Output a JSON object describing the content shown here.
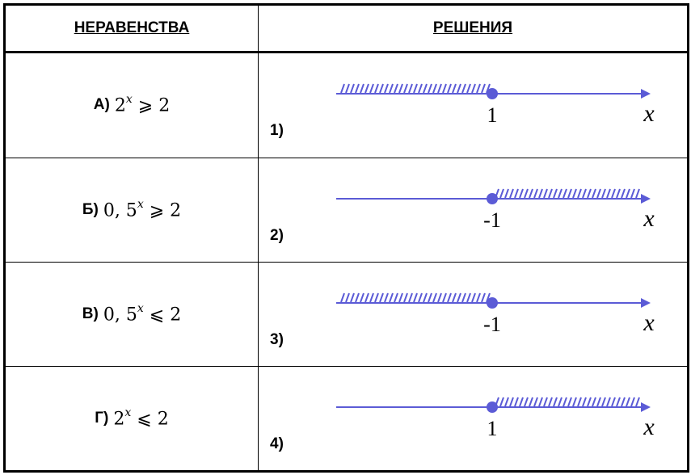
{
  "header": {
    "col1": "НЕРАВЕНСТВА",
    "col2": "РЕШЕНИЯ"
  },
  "inequalities": [
    {
      "label": "А)",
      "base": "2",
      "exp": "x",
      "sign": "⩾",
      "rhs": "2"
    },
    {
      "label": "Б)",
      "base": "0, 5",
      "exp": "x",
      "sign": "⩾",
      "rhs": "2"
    },
    {
      "label": "В)",
      "base": "0, 5",
      "exp": "x",
      "sign": "⩽",
      "rhs": "2"
    },
    {
      "label": "Г)",
      "base": "2",
      "exp": "x",
      "sign": "⩽",
      "rhs": "2"
    }
  ],
  "solutions": [
    {
      "number": "1)",
      "point": "1",
      "axis": "x",
      "hatch": "left"
    },
    {
      "number": "2)",
      "point": "-1",
      "axis": "x",
      "hatch": "right"
    },
    {
      "number": "3)",
      "point": "-1",
      "axis": "x",
      "hatch": "left"
    },
    {
      "number": "4)",
      "point": "1",
      "axis": "x",
      "hatch": "right"
    }
  ],
  "colors": {
    "line": "#5b5bd6",
    "point": "#5b5bd6",
    "border": "#000000"
  }
}
